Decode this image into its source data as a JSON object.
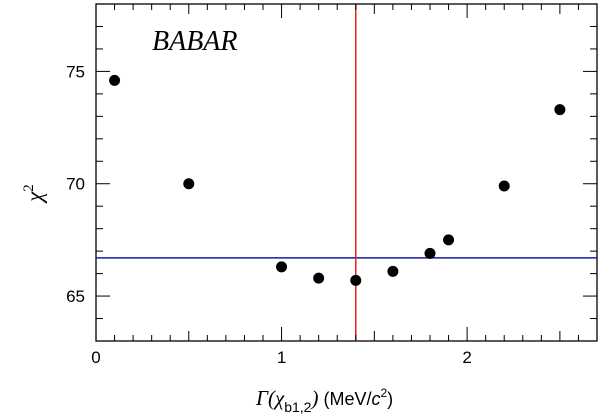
{
  "chart_data": {
    "type": "scatter",
    "annotation": "BABAR",
    "xlabel": {
      "symbol": "Γ",
      "open": "(",
      "chi": "χ",
      "subscript": "b1,2",
      "close": ")",
      "unit_open": " (MeV/",
      "unit_c": "c",
      "unit_exp": "2",
      "unit_close": ")"
    },
    "ylabel": {
      "base": "χ",
      "exponent": "2"
    },
    "xlim": [
      0,
      2.7
    ],
    "ylim": [
      63,
      78
    ],
    "xticks": [
      0,
      1,
      2
    ],
    "yticks": [
      65,
      70,
      75
    ],
    "x": [
      0.1,
      0.5,
      1.0,
      1.2,
      1.4,
      1.6,
      1.8,
      1.9,
      2.2,
      2.5
    ],
    "y": [
      74.6,
      70.0,
      66.3,
      65.8,
      65.7,
      66.1,
      66.9,
      67.5,
      69.9,
      73.3
    ],
    "horizontal_line": {
      "y": 66.7,
      "color": "#1a1aa0"
    },
    "vertical_line": {
      "x": 1.4,
      "color": "#e0241b"
    },
    "marker_color": "#000000"
  }
}
